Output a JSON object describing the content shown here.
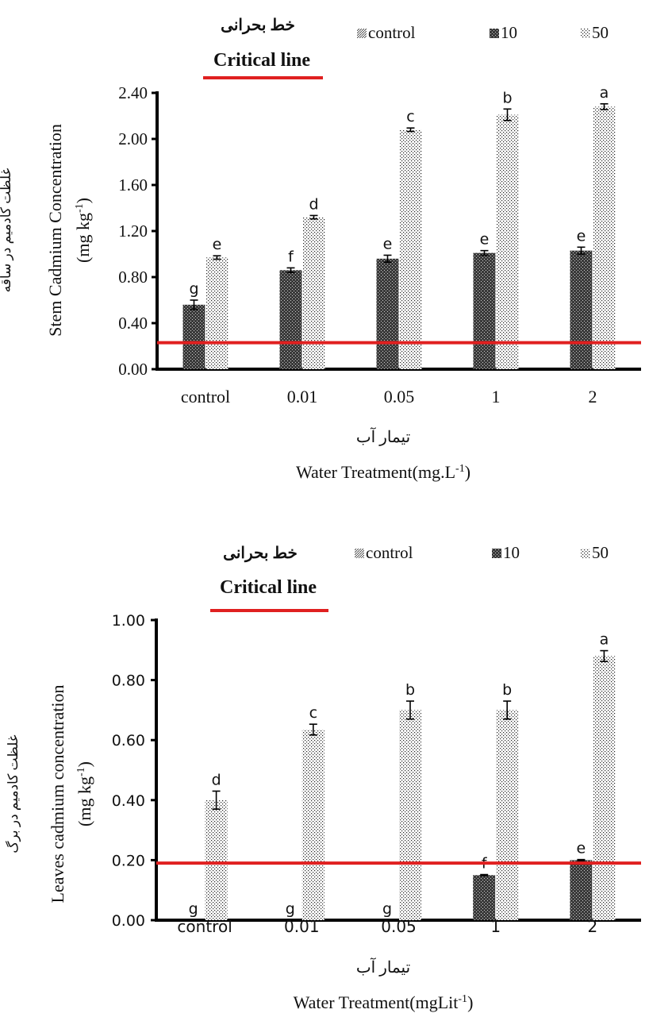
{
  "chart_data": [
    {
      "type": "bar",
      "critical_label_fa": "خط بحرانی",
      "critical_label_en": "Critical line",
      "critical_value": 0.23,
      "legend": [
        "control",
        "10",
        "50"
      ],
      "categories": [
        "control",
        "0.01",
        "0.05",
        "1",
        "2"
      ],
      "ylim": [
        0,
        2.4
      ],
      "ytick_labels": [
        "0.00",
        "0.40",
        "0.80",
        "1.20",
        "1.60",
        "2.00",
        "2.40"
      ],
      "ylabel_fa": "غلظت کادمیم در ساقه",
      "ylabel_en": "Stem Cadmium Concentration",
      "yunit_pre": "(mg kg",
      "yunit_sup": "-1",
      "yunit_post": ")",
      "xlabel_fa": "تیمار آب",
      "xlabel_pre": "Water Treatment(mg.L",
      "xlabel_sup": "-1",
      "xlabel_post": ")",
      "series": [
        {
          "name": "10",
          "values": [
            0.56,
            0.86,
            0.96,
            1.01,
            1.03
          ],
          "errors": [
            0.04,
            0.02,
            0.03,
            0.02,
            0.03
          ],
          "letters": [
            "g",
            "f",
            "e",
            "e",
            "e"
          ]
        },
        {
          "name": "50",
          "values": [
            0.97,
            1.32,
            2.08,
            2.21,
            2.28
          ],
          "errors": [
            0.015,
            0.015,
            0.015,
            0.05,
            0.025
          ],
          "letters": [
            "e",
            "d",
            "c",
            "b",
            "a"
          ]
        }
      ]
    },
    {
      "type": "bar",
      "critical_label_fa": "خط بحرانی",
      "critical_label_en": "Critical line",
      "critical_value": 0.19,
      "legend": [
        "control",
        "10",
        "50"
      ],
      "categories": [
        "control",
        "0.01",
        "0.05",
        "1",
        "2"
      ],
      "ylim": [
        0,
        1.0
      ],
      "ytick_labels": [
        "0.00",
        "0.20",
        "0.40",
        "0.60",
        "0.80",
        "1.00"
      ],
      "ylabel_fa": "غلظت کادمیم در برگ",
      "ylabel_en": "Leaves  cadmium concentration",
      "yunit_pre": "(mg kg",
      "yunit_sup": "-1",
      "yunit_post": ")",
      "xlabel_fa": "تیمار آب",
      "xlabel_pre": "Water Treatment(mgLit",
      "xlabel_sup": "-1",
      "xlabel_post": ")",
      "series": [
        {
          "name": "10",
          "values": [
            0,
            0,
            0,
            0.15,
            0.2
          ],
          "errors": [
            0,
            0,
            0,
            0.002,
            0.002
          ],
          "letters": [
            "g",
            "g",
            "g",
            "f",
            "e"
          ]
        },
        {
          "name": "50",
          "values": [
            0.4,
            0.635,
            0.7,
            0.7,
            0.88
          ],
          "errors": [
            0.03,
            0.018,
            0.03,
            0.03,
            0.018
          ],
          "letters": [
            "d",
            "c",
            "b",
            "b",
            "a"
          ]
        }
      ]
    }
  ]
}
